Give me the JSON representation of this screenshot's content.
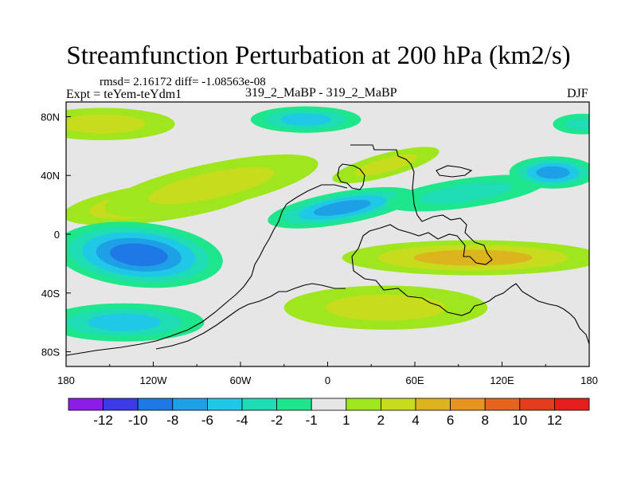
{
  "header": {
    "title": "Streamfunction Perturbation at 200 hPa (km2/s)",
    "stats": "rmsd= 2.16172 diff= -1.08563e-08",
    "expt": "Expt = teYem-teYdm1",
    "diff_label": "319_2_MaBP - 319_2_MaBP",
    "season": "DJF"
  },
  "chart_data": {
    "type": "heatmap",
    "subtype": "filled-contour map",
    "title": "Streamfunction Perturbation at 200 hPa (km2/s)",
    "projection": "cylindrical equidistant",
    "x_range": [
      -180,
      180
    ],
    "y_range": [
      -90,
      90
    ],
    "x_ticks": [
      {
        "value": -180,
        "label": "180"
      },
      {
        "value": -120,
        "label": "120W"
      },
      {
        "value": -60,
        "label": "60W"
      },
      {
        "value": 0,
        "label": "0"
      },
      {
        "value": 60,
        "label": "60E"
      },
      {
        "value": 120,
        "label": "120E"
      },
      {
        "value": 180,
        "label": "180"
      }
    ],
    "y_ticks": [
      {
        "value": 80,
        "label": "80N"
      },
      {
        "value": 40,
        "label": "40N"
      },
      {
        "value": 0,
        "label": "0"
      },
      {
        "value": -40,
        "label": "40S"
      },
      {
        "value": -80,
        "label": "80S"
      }
    ],
    "colorbar": {
      "levels": [
        "-12",
        "-10",
        "-8",
        "-6",
        "-4",
        "-2",
        "-1",
        "1",
        "2",
        "4",
        "6",
        "8",
        "10",
        "12"
      ],
      "colors": [
        "#8a1ee6",
        "#3c3ce6",
        "#1e78e6",
        "#1ea0e6",
        "#1ec8e6",
        "#1edcb4",
        "#1ee68c",
        "#e6e6e6",
        "#a0e61e",
        "#c8dc1e",
        "#dcb41e",
        "#e6961e",
        "#e6641e",
        "#e63c1e",
        "#e61e1e"
      ]
    },
    "features": [
      {
        "name": "north-pacific-anticyclone",
        "center": [
          -115,
          22
        ],
        "half_size": [
          68,
          13
        ],
        "rotation": -8,
        "min_level": 4,
        "peak": 5
      },
      {
        "name": "north-pacific-band",
        "center": [
          -80,
          33
        ],
        "half_size": [
          75,
          15
        ],
        "rotation": -12,
        "min_level": 2,
        "peak": 3
      },
      {
        "name": "arctic-pacific-high",
        "center": [
          -155,
          75
        ],
        "half_size": [
          50,
          11
        ],
        "rotation": 0,
        "min_level": 2,
        "peak": 3
      },
      {
        "name": "arctic-low",
        "center": [
          -15,
          78
        ],
        "half_size": [
          38,
          9
        ],
        "rotation": 0,
        "min_level": -4,
        "peak": -5
      },
      {
        "name": "eurasian-low",
        "center": [
          10,
          18
        ],
        "half_size": [
          52,
          11
        ],
        "rotation": -10,
        "min_level": -6,
        "peak": -7
      },
      {
        "name": "eurasian-low-extension",
        "center": [
          95,
          28
        ],
        "half_size": [
          55,
          10
        ],
        "rotation": -8,
        "min_level": -2,
        "peak": -3
      },
      {
        "name": "east-asia-low",
        "center": [
          155,
          42
        ],
        "half_size": [
          30,
          11
        ],
        "rotation": 0,
        "min_level": -6,
        "peak": -6
      },
      {
        "name": "mid-latitude-high",
        "center": [
          40,
          47
        ],
        "half_size": [
          38,
          8
        ],
        "rotation": -15,
        "min_level": 2,
        "peak": 3
      },
      {
        "name": "south-pacific-low",
        "center": [
          -130,
          -14
        ],
        "half_size": [
          58,
          22
        ],
        "rotation": 5,
        "min_level": -6,
        "peak": -8
      },
      {
        "name": "southern-high",
        "center": [
          100,
          -16
        ],
        "half_size": [
          90,
          12
        ],
        "rotation": 0,
        "min_level": 4,
        "peak": 5
      },
      {
        "name": "southern-ocean-high",
        "center": [
          40,
          -50
        ],
        "half_size": [
          70,
          15
        ],
        "rotation": 0,
        "min_level": 2,
        "peak": 3
      },
      {
        "name": "antarctic-low",
        "center": [
          -140,
          -60
        ],
        "half_size": [
          55,
          13
        ],
        "rotation": 0,
        "min_level": -4,
        "peak": -5
      },
      {
        "name": "arctic-east-low",
        "center": [
          175,
          75
        ],
        "half_size": [
          20,
          7
        ],
        "rotation": 0,
        "min_level": -2,
        "peak": -3
      }
    ]
  }
}
